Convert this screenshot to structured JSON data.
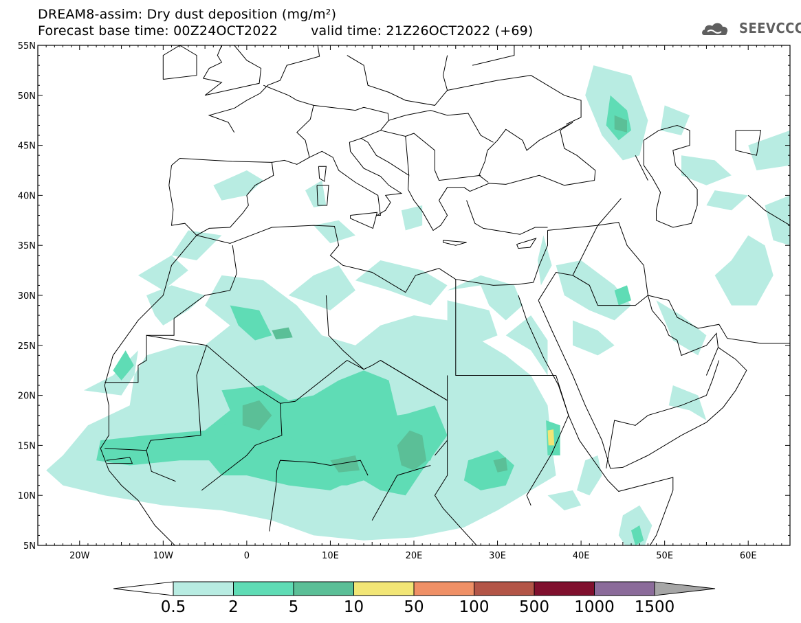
{
  "title": {
    "line1": "DREAM8-assim: Dry dust deposition (mg/m²)",
    "base_time": "Forecast base time: 00Z24OCT2022",
    "valid_time": "valid time: 21Z26OCT2022 (+69)"
  },
  "logo": {
    "text": "SEEVCCC",
    "icon": "cloud-logo-icon"
  },
  "map": {
    "lon_range": [
      -25,
      65
    ],
    "lat_range": [
      5,
      55
    ],
    "lat_labels": [
      "55N",
      "50N",
      "45N",
      "40N",
      "35N",
      "30N",
      "25N",
      "20N",
      "15N",
      "10N",
      "5N"
    ],
    "lon_labels": [
      "20W",
      "10W",
      "0",
      "10E",
      "20E",
      "30E",
      "40E",
      "50E",
      "60E"
    ]
  },
  "colorbar": {
    "labels": [
      "0.5",
      "2",
      "5",
      "10",
      "50",
      "100",
      "500",
      "1000",
      "1500"
    ],
    "colors": [
      "#b8ece2",
      "#5fdcb5",
      "#5bbf97",
      "#f2e676",
      "#ef9066",
      "#b35547",
      "#80102e",
      "#8b6b9a"
    ],
    "over_color": "#a6a6a6",
    "under_color": "#ffffff"
  },
  "dust_areas": [
    {
      "level": 0,
      "points": [
        [
          -19.5,
          20.5
        ],
        [
          -16,
          22
        ],
        [
          -13,
          24.5
        ],
        [
          -14,
          19
        ],
        [
          -19,
          17
        ],
        [
          -22,
          14
        ],
        [
          -24,
          12.5
        ],
        [
          -22,
          11
        ],
        [
          -17,
          10
        ],
        [
          -10,
          9
        ],
        [
          -3,
          8.5
        ],
        [
          3,
          7.5
        ],
        [
          8,
          6
        ],
        [
          14,
          5.5
        ],
        [
          20,
          5.8
        ],
        [
          26,
          6.8
        ],
        [
          30,
          8.5
        ],
        [
          33,
          10
        ],
        [
          35,
          11
        ],
        [
          37,
          12
        ],
        [
          36.5,
          15
        ],
        [
          36,
          19
        ],
        [
          34,
          22
        ],
        [
          31,
          24
        ],
        [
          27,
          26
        ],
        [
          24,
          27.5
        ],
        [
          20,
          28
        ],
        [
          16,
          27
        ],
        [
          13,
          25
        ],
        [
          9,
          26
        ],
        [
          6,
          29
        ],
        [
          2,
          31.5
        ],
        [
          -3,
          32
        ],
        [
          -5,
          29
        ],
        [
          -2,
          27
        ],
        [
          -5,
          25
        ],
        [
          -8,
          25
        ],
        [
          -12,
          24
        ],
        [
          -15,
          20
        ]
      ]
    },
    {
      "level": 0,
      "points": [
        [
          -10,
          27
        ],
        [
          -7,
          28.5
        ],
        [
          -5,
          30
        ],
        [
          -9,
          31
        ],
        [
          -12,
          30
        ],
        [
          -11,
          28
        ]
      ]
    },
    {
      "level": 0,
      "points": [
        [
          -9,
          34
        ],
        [
          -6,
          33.5
        ],
        [
          -3,
          36
        ],
        [
          -7,
          36.5
        ]
      ]
    },
    {
      "level": 0,
      "points": [
        [
          5,
          30
        ],
        [
          10,
          28.5
        ],
        [
          13,
          30.5
        ],
        [
          11,
          33
        ],
        [
          8,
          32
        ]
      ]
    },
    {
      "level": 0,
      "points": [
        [
          13,
          31.5
        ],
        [
          17,
          30.5
        ],
        [
          22,
          29
        ],
        [
          24,
          31
        ],
        [
          21,
          32.5
        ],
        [
          16,
          33.5
        ]
      ]
    },
    {
      "level": 0,
      "points": [
        [
          24,
          30.5
        ],
        [
          28,
          31
        ],
        [
          29,
          29
        ],
        [
          31,
          27.5
        ],
        [
          33,
          29
        ],
        [
          32,
          31
        ],
        [
          28,
          32
        ]
      ]
    },
    {
      "level": 0,
      "points": [
        [
          24,
          29.5
        ],
        [
          29,
          28.5
        ],
        [
          30,
          26
        ],
        [
          27,
          25
        ],
        [
          24,
          26.5
        ]
      ]
    },
    {
      "level": 0,
      "points": [
        [
          31,
          26
        ],
        [
          34,
          24.5
        ],
        [
          36,
          22
        ],
        [
          36,
          25.5
        ],
        [
          34,
          28
        ]
      ]
    },
    {
      "level": 0,
      "points": [
        [
          37,
          33
        ],
        [
          40,
          33.5
        ],
        [
          44,
          31
        ],
        [
          46,
          29
        ],
        [
          44,
          27.5
        ],
        [
          41,
          28.5
        ],
        [
          38,
          30
        ]
      ]
    },
    {
      "level": 0,
      "points": [
        [
          35.5,
          36
        ],
        [
          36.5,
          33
        ],
        [
          35.2,
          31
        ],
        [
          34.8,
          33.5
        ]
      ]
    },
    {
      "level": 0,
      "points": [
        [
          39,
          27.5
        ],
        [
          42,
          26.5
        ],
        [
          44,
          25
        ],
        [
          42,
          24
        ],
        [
          39,
          25
        ]
      ]
    },
    {
      "level": 0,
      "points": [
        [
          41.5,
          53
        ],
        [
          46,
          52
        ],
        [
          48,
          47.5
        ],
        [
          47,
          44
        ],
        [
          45,
          43.5
        ],
        [
          42.5,
          46
        ],
        [
          40.5,
          50
        ]
      ]
    },
    {
      "level": 0,
      "points": [
        [
          50,
          49
        ],
        [
          53,
          48
        ],
        [
          52,
          46
        ],
        [
          49.5,
          46.5
        ]
      ]
    },
    {
      "level": 0,
      "points": [
        [
          52,
          44
        ],
        [
          56,
          43.5
        ],
        [
          58,
          42
        ],
        [
          55,
          41
        ],
        [
          52,
          42
        ]
      ]
    },
    {
      "level": 0,
      "points": [
        [
          60,
          45
        ],
        [
          65,
          46.5
        ],
        [
          65,
          43
        ],
        [
          61,
          42.5
        ]
      ]
    },
    {
      "level": 0,
      "points": [
        [
          56,
          40.5
        ],
        [
          60,
          40
        ],
        [
          58,
          38.5
        ],
        [
          55,
          39
        ]
      ]
    },
    {
      "level": 0,
      "points": [
        [
          56,
          32
        ],
        [
          58,
          33.5
        ],
        [
          60,
          36
        ],
        [
          62,
          35
        ],
        [
          63,
          32
        ],
        [
          61,
          29
        ],
        [
          58,
          29
        ]
      ]
    },
    {
      "level": 0,
      "points": [
        [
          62,
          39
        ],
        [
          65,
          40
        ],
        [
          65,
          35
        ],
        [
          63,
          35.5
        ]
      ]
    },
    {
      "level": 0,
      "points": [
        [
          49,
          29.5
        ],
        [
          52,
          28
        ],
        [
          55,
          26
        ],
        [
          54,
          24
        ],
        [
          51,
          25.5
        ]
      ]
    },
    {
      "level": 0,
      "points": [
        [
          51,
          21
        ],
        [
          54,
          20
        ],
        [
          55,
          17.5
        ],
        [
          53,
          18.5
        ],
        [
          50.5,
          19
        ]
      ]
    },
    {
      "level": 0,
      "points": [
        [
          45,
          8
        ],
        [
          47,
          9
        ],
        [
          48.5,
          7
        ],
        [
          47.5,
          4.7
        ],
        [
          45.5,
          4.7
        ],
        [
          44.5,
          6
        ]
      ]
    },
    {
      "level": 0,
      "points": [
        [
          40.5,
          13.5
        ],
        [
          42,
          14
        ],
        [
          42.5,
          12
        ],
        [
          41,
          10
        ],
        [
          39.5,
          10.5
        ]
      ]
    },
    {
      "level": 0,
      "points": [
        [
          36,
          10
        ],
        [
          39,
          10.5
        ],
        [
          40,
          9
        ],
        [
          38,
          8.5
        ]
      ]
    },
    {
      "level": 0,
      "points": [
        [
          -4,
          41
        ],
        [
          0,
          42.5
        ],
        [
          2,
          41.5
        ],
        [
          0,
          40
        ],
        [
          -3,
          39.5
        ]
      ]
    },
    {
      "level": 0,
      "points": [
        [
          8,
          37
        ],
        [
          11,
          37.5
        ],
        [
          13,
          36
        ],
        [
          10,
          35.2
        ]
      ]
    },
    {
      "level": 0,
      "points": [
        [
          18.5,
          38.5
        ],
        [
          21,
          39
        ],
        [
          21,
          37
        ],
        [
          19,
          36.5
        ]
      ]
    },
    {
      "level": 0,
      "points": [
        [
          7,
          40.5
        ],
        [
          9,
          41.5
        ],
        [
          9.5,
          39
        ],
        [
          8,
          38.8
        ]
      ]
    },
    {
      "level": 0,
      "points": [
        [
          -13,
          32
        ],
        [
          -9,
          34
        ],
        [
          -7,
          32.5
        ],
        [
          -10,
          30.5
        ]
      ]
    },
    {
      "level": 1,
      "points": [
        [
          -17.5,
          15.5
        ],
        [
          -12,
          16
        ],
        [
          -5,
          16.5
        ],
        [
          -2,
          18.5
        ],
        [
          -3,
          20.5
        ],
        [
          2,
          21
        ],
        [
          5,
          19.5
        ],
        [
          8,
          20
        ],
        [
          11,
          21.5
        ],
        [
          14,
          22.5
        ],
        [
          17,
          21.5
        ],
        [
          18,
          18
        ],
        [
          22,
          18.5
        ],
        [
          23,
          16
        ],
        [
          22,
          13.5
        ],
        [
          16,
          12
        ],
        [
          12,
          11
        ],
        [
          7,
          11
        ],
        [
          3,
          12.5
        ],
        [
          -2,
          13.5
        ],
        [
          -8,
          13.5
        ],
        [
          -14,
          13
        ],
        [
          -18,
          13.5
        ]
      ]
    },
    {
      "level": 1,
      "points": [
        [
          15,
          13
        ],
        [
          18,
          15
        ],
        [
          18.5,
          18
        ],
        [
          22.5,
          19
        ],
        [
          24,
          16
        ],
        [
          21,
          12.5
        ],
        [
          19,
          10
        ],
        [
          16,
          10.5
        ],
        [
          14,
          11.5
        ]
      ]
    },
    {
      "level": 1,
      "points": [
        [
          -5,
          14
        ],
        [
          -3,
          17
        ],
        [
          0,
          17.5
        ],
        [
          5,
          16
        ],
        [
          8,
          14
        ],
        [
          12,
          13.5
        ],
        [
          14,
          12
        ],
        [
          10,
          10.5
        ],
        [
          5,
          11
        ],
        [
          0,
          12
        ],
        [
          -3,
          12
        ]
      ]
    },
    {
      "level": 1,
      "points": [
        [
          26.5,
          13.5
        ],
        [
          30,
          14.5
        ],
        [
          32,
          13
        ],
        [
          31,
          11
        ],
        [
          28,
          10.5
        ],
        [
          26,
          11.5
        ]
      ]
    },
    {
      "level": 1,
      "points": [
        [
          -2,
          29
        ],
        [
          1.5,
          28.5
        ],
        [
          3,
          26
        ],
        [
          1,
          25.5
        ],
        [
          -1,
          27
        ]
      ]
    },
    {
      "level": 1,
      "points": [
        [
          35.8,
          17.5
        ],
        [
          37.5,
          17
        ],
        [
          37.5,
          14
        ],
        [
          36,
          14
        ]
      ]
    },
    {
      "level": 1,
      "points": [
        [
          43.5,
          50
        ],
        [
          45.5,
          48.5
        ],
        [
          46,
          46.5
        ],
        [
          44.5,
          45.5
        ],
        [
          43,
          47
        ]
      ]
    },
    {
      "level": 1,
      "points": [
        [
          46,
          6.5
        ],
        [
          47,
          7
        ],
        [
          47.5,
          5.5
        ],
        [
          46.5,
          5
        ]
      ]
    },
    {
      "level": 1,
      "points": [
        [
          44,
          30.5
        ],
        [
          45.5,
          31
        ],
        [
          46,
          29.5
        ],
        [
          44.5,
          29
        ]
      ]
    },
    {
      "level": 1,
      "points": [
        [
          -16,
          22.5
        ],
        [
          -14.5,
          24.5
        ],
        [
          -13.5,
          23
        ],
        [
          -15,
          21.5
        ]
      ]
    },
    {
      "level": 2,
      "points": [
        [
          -0.5,
          19
        ],
        [
          1.5,
          19.5
        ],
        [
          3,
          18
        ],
        [
          1.5,
          16.5
        ],
        [
          -0.5,
          17
        ]
      ]
    },
    {
      "level": 2,
      "points": [
        [
          18,
          15
        ],
        [
          19.5,
          16.5
        ],
        [
          21,
          16
        ],
        [
          21.5,
          13.5
        ],
        [
          20,
          12.5
        ],
        [
          18.5,
          13
        ]
      ]
    },
    {
      "level": 2,
      "points": [
        [
          10,
          13.5
        ],
        [
          13,
          14
        ],
        [
          13.5,
          12.5
        ],
        [
          11,
          12.3
        ]
      ]
    },
    {
      "level": 2,
      "points": [
        [
          3,
          26.5
        ],
        [
          5,
          26.8
        ],
        [
          5.5,
          25.8
        ],
        [
          3.5,
          25.6
        ]
      ]
    },
    {
      "level": 2,
      "points": [
        [
          44,
          48
        ],
        [
          45.5,
          47.5
        ],
        [
          45.5,
          46.3
        ],
        [
          44,
          46.6
        ]
      ]
    },
    {
      "level": 2,
      "points": [
        [
          29.5,
          13.5
        ],
        [
          31,
          13.8
        ],
        [
          31.2,
          12.5
        ],
        [
          30,
          12.3
        ]
      ]
    },
    {
      "level": 3,
      "points": [
        [
          36,
          16.5
        ],
        [
          36.7,
          16.6
        ],
        [
          36.8,
          15
        ],
        [
          36.1,
          15
        ]
      ]
    }
  ]
}
